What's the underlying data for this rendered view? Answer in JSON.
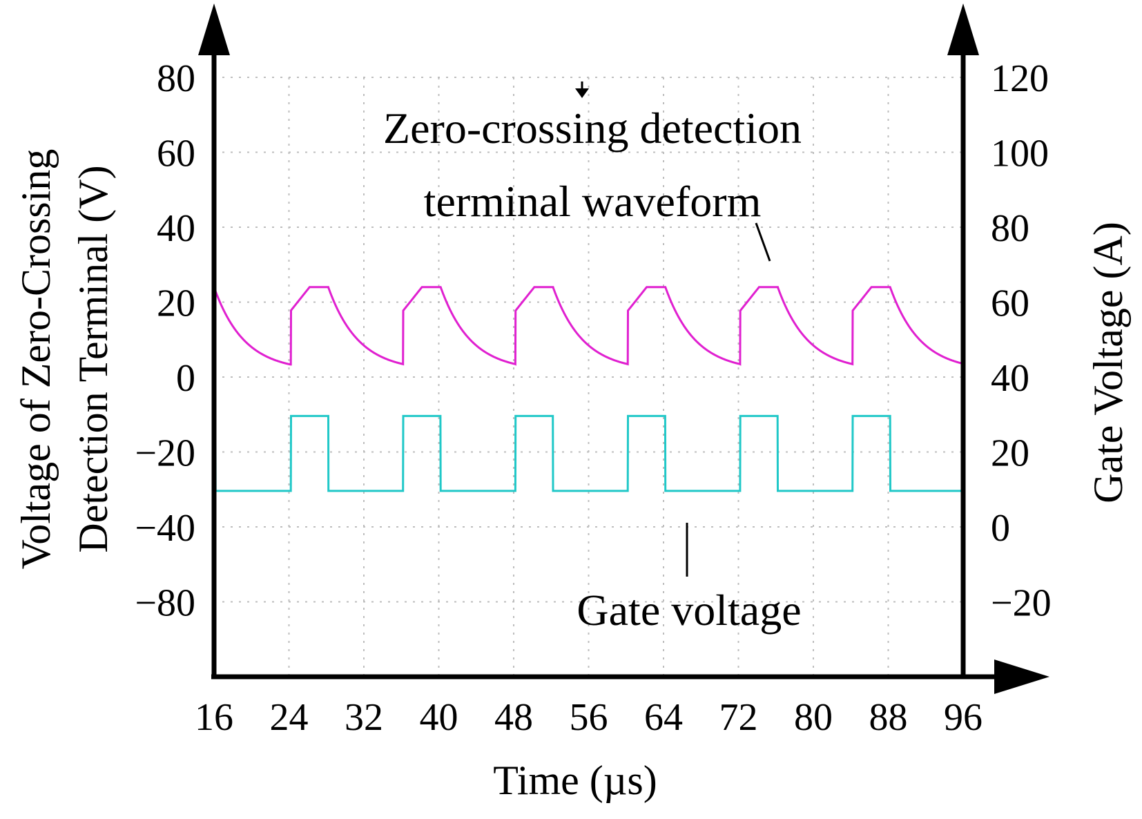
{
  "chart_data": {
    "type": "line",
    "xlabel": "Time (µs)",
    "ylabel_left": [
      "Voltage of Zero-Crossing",
      "Detection Terminal (V)"
    ],
    "ylabel_right": "Gate Voltage (A)",
    "x_ticks": [
      "16",
      "24",
      "32",
      "40",
      "48",
      "56",
      "64",
      "72",
      "80",
      "88",
      "96"
    ],
    "y_left_ticks": [
      "80",
      "60",
      "40",
      "20",
      "0",
      "−20",
      "−40",
      "−80"
    ],
    "y_right_ticks": [
      "120",
      "100",
      "80",
      "60",
      "40",
      "20",
      "0",
      "−20"
    ],
    "xlim": [
      16,
      96
    ],
    "y_left_lim": [
      -100,
      100
    ],
    "y_right_lim": [
      -40,
      120
    ],
    "grid": true,
    "annotations": [
      {
        "text": [
          "Zero-crossing detection",
          "terminal waveform"
        ],
        "series": "zc"
      },
      {
        "text": [
          "Gate voltage"
        ],
        "series": "gate"
      }
    ],
    "series": [
      {
        "id": "zc",
        "color": "#e020d0",
        "axis": "left",
        "high": 30,
        "low": 2,
        "start_value": 30,
        "period": 12,
        "pulse_starts": [
          24.2,
          36.2,
          48.2,
          60.2,
          72.2,
          84.2
        ],
        "pulse_width": 4,
        "rise": 2
      },
      {
        "id": "gate",
        "color": "#20c8c8",
        "axis": "left",
        "high": -13,
        "low": -38,
        "start_value": -13,
        "period": 12,
        "pulse_starts": [
          24.2,
          36.2,
          48.2,
          60.2,
          72.2,
          84.2
        ],
        "pulse_width": 4
      }
    ]
  }
}
